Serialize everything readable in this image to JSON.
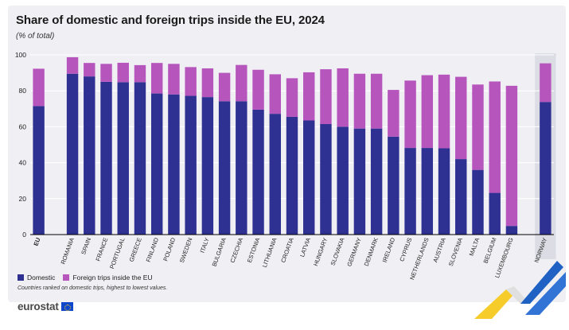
{
  "title": "Share of domestic and foreign trips inside the EU, 2024",
  "subtitle": "(% of total)",
  "footnote": "Countries ranked on domestic trips, highest to lowest values.",
  "brand": {
    "name": "eurostat"
  },
  "colors": {
    "domestic": "#2e3192",
    "foreign": "#b656bd",
    "panel": "#f0f0f4",
    "highlight": "#dcdce4"
  },
  "chart_data": {
    "type": "bar",
    "stacked": true,
    "title": "Share of domestic and foreign trips inside the EU, 2024",
    "ylabel": "(% of total)",
    "ylim": [
      0,
      100
    ],
    "yticks": [
      0,
      20,
      40,
      60,
      80,
      100
    ],
    "grid": true,
    "categories": [
      "EU",
      "ROMANIA",
      "SPAIN",
      "FRANCE",
      "PORTUGAL",
      "GREECE",
      "FINLAND",
      "POLAND",
      "SWEDEN",
      "ITALY",
      "BULGARIA",
      "CZECHIA",
      "ESTONIA",
      "LITHUANIA",
      "CROATIA",
      "LATVIA",
      "HUNGARY",
      "SLOVAKIA",
      "GERMANY",
      "DENMARK",
      "IRELAND",
      "CYPRUS",
      "NETHERLANDS",
      "AUSTRIA",
      "SLOVENIA",
      "MALTA",
      "BELGIUM",
      "LUXEMBOURG",
      "NORWAY"
    ],
    "group_gap_after": [
      "EU",
      "LUXEMBOURG"
    ],
    "highlighted_category": "NORWAY",
    "series": [
      {
        "name": "Domestic",
        "values": [
          71.5,
          89.5,
          88,
          85,
          84.8,
          84.8,
          78.5,
          78,
          77.2,
          76.5,
          74.2,
          74.2,
          69.5,
          67.2,
          65.5,
          63.5,
          61.5,
          60,
          59,
          59,
          54.5,
          48.2,
          48.2,
          48,
          42,
          36,
          23.2,
          4.8,
          73.8
        ]
      },
      {
        "name": "Foreign trips inside the EU",
        "values": [
          20.8,
          9.2,
          7.5,
          10,
          10.8,
          9.5,
          17,
          17,
          16,
          16,
          15.8,
          20.2,
          22.2,
          22,
          21.5,
          26.8,
          30.5,
          32.5,
          30.5,
          30.5,
          26,
          37.5,
          40.5,
          41,
          45.8,
          47.5,
          62,
          78,
          21.5
        ]
      }
    ]
  }
}
